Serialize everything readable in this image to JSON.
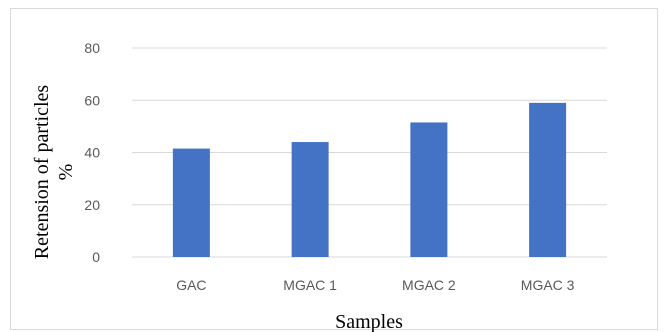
{
  "chart_data": {
    "type": "bar",
    "categories": [
      "GAC",
      "MGAC 1",
      "MGAC 2",
      "MGAC 3"
    ],
    "values": [
      41.5,
      44,
      51.5,
      59
    ],
    "xlabel": "Samples",
    "ylabel_line1": "Retension  of particles",
    "ylabel_line2": "%",
    "ylim": [
      0,
      80
    ],
    "yticks": [
      0,
      20,
      40,
      60,
      80
    ],
    "grid": true,
    "bar_color": "#4472c4",
    "grid_color": "#d9d9d9"
  }
}
